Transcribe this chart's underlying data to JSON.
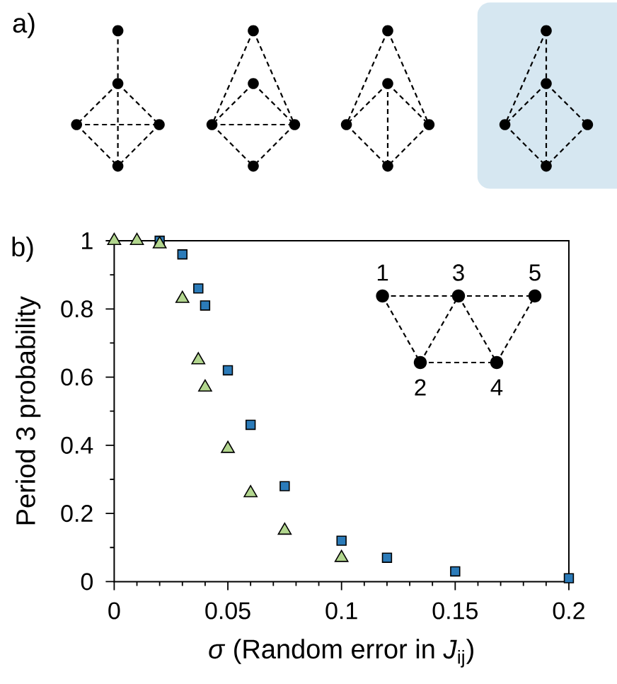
{
  "chart_data": {
    "type": "scatter",
    "xlabel": "*σ* (Random error in *J*$_{ij}$)",
    "ylabel": "Period 3 probability",
    "xlim": [
      0,
      0.2
    ],
    "ylim": [
      0,
      1
    ],
    "xticks": [
      0,
      0.05,
      0.1,
      0.15,
      0.2
    ],
    "yticks": [
      0,
      0.2,
      0.4,
      0.6,
      0.8,
      1
    ],
    "series": [
      {
        "color": "#2b7bb9",
        "marker": "square",
        "x": [
          0.02,
          0.03,
          0.037,
          0.04,
          0.05,
          0.06,
          0.075,
          0.1,
          0.12,
          0.15,
          0.2
        ],
        "values": [
          1.0,
          0.96,
          0.86,
          0.81,
          0.62,
          0.46,
          0.28,
          0.12,
          0.07,
          0.03,
          0.01
        ]
      },
      {
        "color": "#b2d68e",
        "marker": "triangle",
        "x": [
          0,
          0.01,
          0.02,
          0.03,
          0.037,
          0.04,
          0.05,
          0.06,
          0.075,
          0.1
        ],
        "values": [
          1.0,
          1.0,
          0.99,
          0.83,
          0.65,
          0.57,
          0.39,
          0.26,
          0.15,
          0.07
        ]
      }
    ],
    "annotations": [
      "a)",
      "b)",
      "1",
      "2",
      "3",
      "4",
      "5"
    ]
  }
}
